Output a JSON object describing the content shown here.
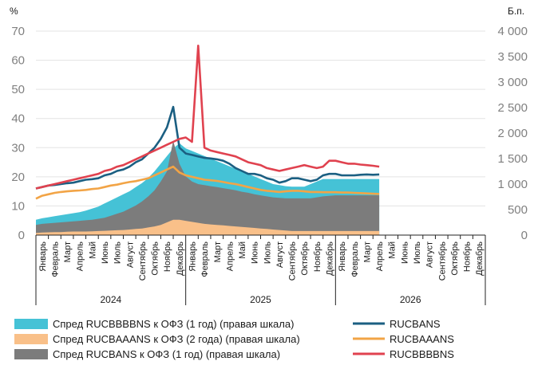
{
  "chart_data": {
    "type": "line",
    "left_axis_label": "%",
    "right_axis_label": "Б.п.",
    "left_ticks": [
      "70",
      "60",
      "50",
      "40",
      "30",
      "20",
      "10",
      "0"
    ],
    "right_ticks": [
      "4 000",
      "3 500",
      "3 000",
      "2 500",
      "2 000",
      "1 500",
      "1 000",
      "500",
      "0"
    ],
    "ylim_left": [
      0,
      70
    ],
    "ylim_right": [
      0,
      4000
    ],
    "grid": true,
    "legend_position": "bottom",
    "month_labels": [
      "Январь",
      "Февраль",
      "Март",
      "Апрель",
      "Май",
      "Июнь",
      "Июль",
      "Август",
      "Сентябрь",
      "Октябрь",
      "Ноябрь",
      "Декабрь"
    ],
    "years": [
      "2024",
      "2025",
      "2026"
    ],
    "colors": {
      "rucbans": "#1b5f82",
      "rucbaaans": "#f2a446",
      "rucbbbbns": "#e0424f",
      "spread_bbb": "#45c2d6",
      "spread_aa": "#f9c089",
      "spread_bans": "#7c7c7c"
    },
    "x_months": [
      0,
      0.5,
      1,
      1.5,
      2,
      2.5,
      3,
      3.5,
      4,
      4.5,
      5,
      5.5,
      6,
      6.5,
      7,
      7.5,
      8,
      8.5,
      9,
      9.5,
      10,
      10.5,
      11,
      11.5,
      12,
      12.5,
      13,
      13.5,
      14,
      14.5,
      15,
      15.5,
      16,
      16.5,
      17,
      17.5,
      18,
      18.5,
      19,
      19.5,
      20,
      20.5,
      21,
      21.5,
      22,
      22.5,
      23,
      23.5,
      24,
      24.5,
      25,
      25.5,
      26,
      26.5,
      27,
      27.5
    ],
    "series": [
      {
        "name": "RUCBANS",
        "axis": "left",
        "type": "line",
        "values": [
          16,
          16.5,
          17,
          17.2,
          17.5,
          17.8,
          18,
          18.5,
          19,
          19.2,
          19.5,
          20.5,
          21,
          22,
          22.5,
          23.5,
          25,
          26,
          28,
          30,
          33,
          37,
          44,
          30,
          28,
          27.5,
          27,
          26.5,
          26.3,
          26,
          25.5,
          24.5,
          23,
          22,
          21,
          21,
          20.5,
          19.5,
          19,
          18,
          18.5,
          19.5,
          19.5,
          19,
          18.5,
          19,
          20.5,
          21,
          21,
          20.5,
          20.5,
          20.5,
          20.7,
          20.8,
          20.7,
          20.8
        ]
      },
      {
        "name": "RUCBAAANS",
        "axis": "left",
        "type": "line",
        "values": [
          12.5,
          13.5,
          14,
          14.5,
          14.8,
          15,
          15.2,
          15.3,
          15.5,
          15.8,
          16,
          16.5,
          17,
          17.3,
          17.8,
          18.2,
          18.5,
          19,
          19.5,
          20.5,
          21.5,
          22.5,
          23.5,
          21.5,
          20.5,
          20,
          19.5,
          19,
          18.8,
          18.6,
          18.2,
          17.8,
          17.5,
          17,
          16.5,
          16,
          15.5,
          15.2,
          15,
          14.8,
          15,
          15.2,
          15.2,
          15,
          14.8,
          14.8,
          14.7,
          14.7,
          14.7,
          14.6,
          14.6,
          14.5,
          14.4,
          14.3,
          14.2,
          14.1
        ]
      },
      {
        "name": "RUCBBBBNS",
        "axis": "left",
        "type": "line",
        "values": [
          16,
          16.5,
          17,
          17.5,
          18,
          18.5,
          19,
          19.5,
          20,
          20.5,
          21,
          22,
          22.5,
          23.5,
          24,
          25,
          26,
          27,
          28,
          29,
          30,
          31,
          32,
          33,
          33.5,
          32,
          65,
          30,
          29,
          28.5,
          28,
          27.5,
          27,
          26,
          25,
          24.5,
          24,
          23,
          22.5,
          22,
          22.5,
          23,
          23.5,
          24,
          23.5,
          23,
          23.5,
          25.5,
          25.5,
          25,
          24.5,
          24.5,
          24.2,
          24,
          23.8,
          23.5
        ]
      },
      {
        "name": "Спред RUCBBBBNS к ОФЗ (1 год) (правая шкала)",
        "axis": "right",
        "type": "area",
        "values": [
          300,
          330,
          350,
          370,
          390,
          410,
          430,
          450,
          480,
          520,
          560,
          620,
          680,
          740,
          800,
          860,
          940,
          1020,
          1120,
          1250,
          1400,
          1550,
          1700,
          1800,
          1700,
          1650,
          1600,
          1550,
          1500,
          1450,
          1400,
          1350,
          1300,
          1250,
          1200,
          1150,
          1100,
          1050,
          1000,
          980,
          960,
          950,
          950,
          950,
          1000,
          1050,
          1100,
          1100,
          1100,
          1100,
          1100,
          1100,
          1100,
          1100,
          1100,
          1100
        ]
      },
      {
        "name": "Спред RUCBAAANS к ОФЗ (2 года) (правая шкала)",
        "axis": "right",
        "type": "area",
        "values": [
          40,
          50,
          55,
          60,
          60,
          65,
          70,
          70,
          70,
          75,
          80,
          85,
          90,
          95,
          100,
          110,
          120,
          130,
          150,
          170,
          200,
          250,
          300,
          300,
          280,
          260,
          240,
          220,
          210,
          200,
          190,
          180,
          170,
          160,
          150,
          140,
          130,
          120,
          110,
          100,
          90,
          80,
          80,
          80,
          80,
          80,
          80,
          80,
          80,
          80,
          80,
          80,
          80,
          80,
          80,
          80
        ]
      },
      {
        "name": "Спред RUCBANS к ОФЗ (1 год) (правая шкала)",
        "axis": "right",
        "type": "area",
        "values": [
          200,
          220,
          230,
          240,
          250,
          260,
          270,
          280,
          290,
          300,
          320,
          340,
          380,
          420,
          460,
          520,
          580,
          660,
          760,
          880,
          1050,
          1250,
          1850,
          1400,
          1150,
          1050,
          1000,
          980,
          960,
          940,
          920,
          900,
          880,
          850,
          830,
          800,
          780,
          760,
          740,
          730,
          720,
          720,
          720,
          720,
          720,
          740,
          760,
          770,
          780,
          780,
          780,
          780,
          780,
          780,
          780,
          780
        ]
      }
    ]
  },
  "legend": {
    "spread_bbb": "Спред RUCBBBBNS к ОФЗ (1 год) (правая шкала)",
    "spread_aa": "Спред RUCBAAANS к ОФЗ (2 года) (правая шкала)",
    "spread_bans": "Спред RUCBANS к ОФЗ (1 год) (правая шкала)",
    "rucbans": "RUCBANS",
    "rucbaaans": "RUCBAAANS",
    "rucbbbbns": "RUCBBBBNS"
  }
}
